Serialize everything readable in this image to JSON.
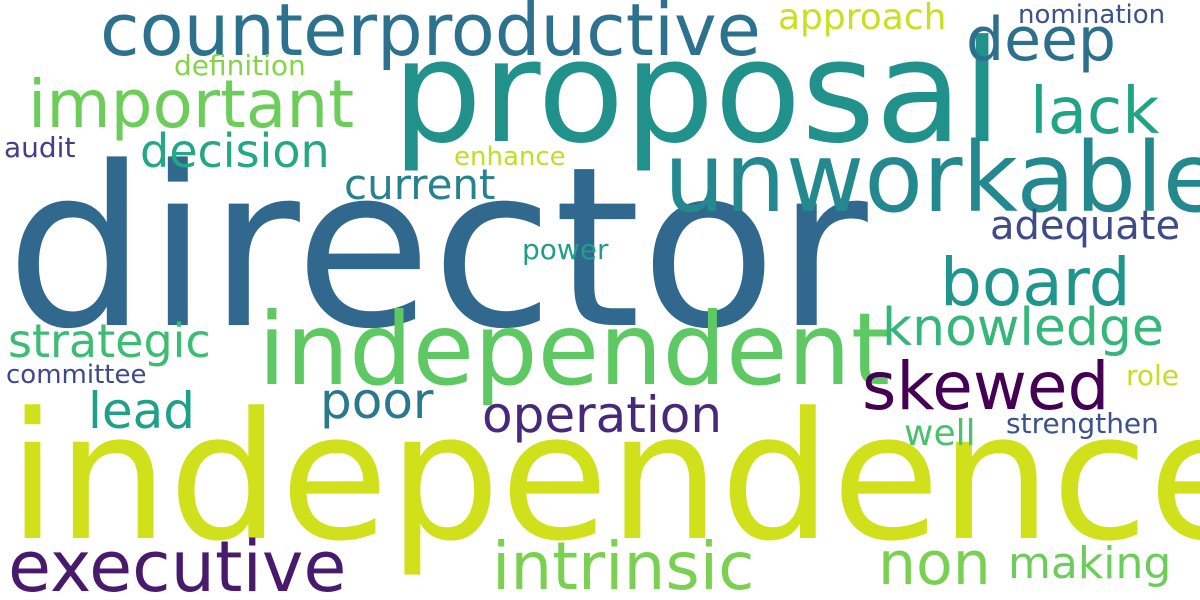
{
  "words": [
    {
      "text": "director",
      "color": "#31688e"
    },
    {
      "text": "independence",
      "color": "#d0e11c"
    },
    {
      "text": "proposal",
      "color": "#21918c"
    },
    {
      "text": "independent",
      "color": "#5ec962"
    },
    {
      "text": "unworkable",
      "color": "#23898e"
    },
    {
      "text": "counterproductive",
      "color": "#2c728e"
    },
    {
      "text": "important",
      "color": "#6ccd5a"
    },
    {
      "text": "executive",
      "color": "#481a6c"
    },
    {
      "text": "intrinsic",
      "color": "#7ad151"
    },
    {
      "text": "board",
      "color": "#1f958b"
    },
    {
      "text": "skewed",
      "color": "#440154"
    },
    {
      "text": "knowledge",
      "color": "#35b779"
    },
    {
      "text": "deep",
      "color": "#2d708e"
    },
    {
      "text": "lack",
      "color": "#20a486"
    },
    {
      "text": "operation",
      "color": "#482878"
    },
    {
      "text": "decision",
      "color": "#22a884"
    },
    {
      "text": "current",
      "color": "#26828e"
    },
    {
      "text": "non",
      "color": "#7ad151"
    },
    {
      "text": "lead",
      "color": "#1fa088"
    },
    {
      "text": "poor",
      "color": "#2a788e"
    },
    {
      "text": "strategic",
      "color": "#3dbc74"
    },
    {
      "text": "making",
      "color": "#6ccd5a"
    },
    {
      "text": "adequate",
      "color": "#3e4a89"
    },
    {
      "text": "approach",
      "color": "#c8e020"
    },
    {
      "text": "definition",
      "color": "#86d549"
    },
    {
      "text": "nomination",
      "color": "#3b528b"
    },
    {
      "text": "audit",
      "color": "#433e85"
    },
    {
      "text": "enhance",
      "color": "#bddf26"
    },
    {
      "text": "power",
      "color": "#1f9e89"
    },
    {
      "text": "committee",
      "color": "#3e4989"
    },
    {
      "text": "well",
      "color": "#4ac16d"
    },
    {
      "text": "strengthen",
      "color": "#3b528b"
    },
    {
      "text": "role",
      "color": "#c2df23"
    }
  ]
}
